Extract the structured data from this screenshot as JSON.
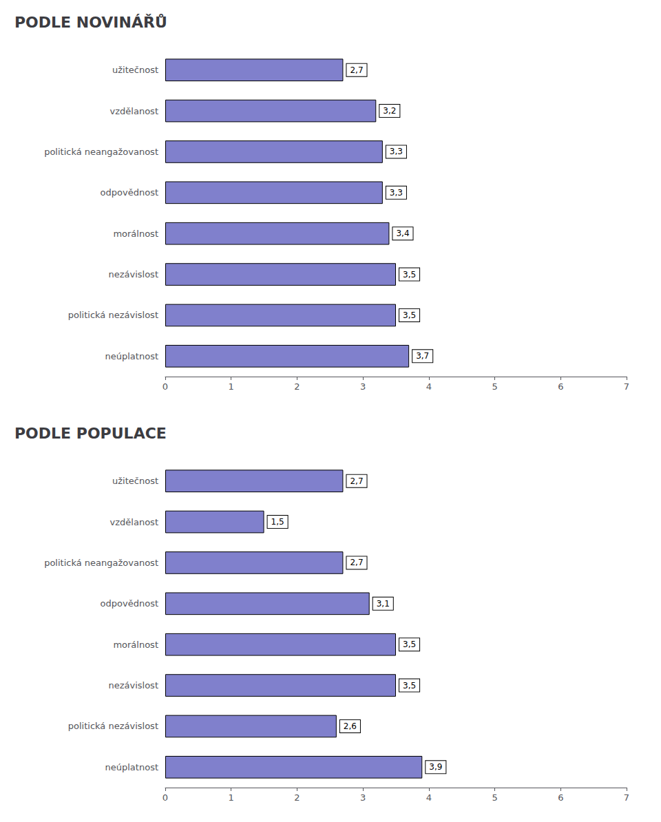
{
  "chart_data": [
    {
      "type": "bar",
      "orientation": "horizontal",
      "title": "PODLE NOVINÁŘŮ",
      "categories": [
        "užitečnost",
        "vzdělanost",
        "politická neangažovanost",
        "odpovědnost",
        "morálnost",
        "nezávislost",
        "politická nezávislost",
        "neúplatnost"
      ],
      "values": [
        2.7,
        3.2,
        3.3,
        3.3,
        3.4,
        3.5,
        3.5,
        3.7
      ],
      "value_labels": [
        "2,7",
        "3,2",
        "3,3",
        "3,3",
        "3,4",
        "3,5",
        "3,5",
        "3,7"
      ],
      "data_labels": true,
      "color": "#8080cc",
      "xlim": [
        0,
        7
      ],
      "xticks": [
        0,
        1,
        2,
        3,
        4,
        5,
        6,
        7
      ],
      "grid": false
    },
    {
      "type": "bar",
      "orientation": "horizontal",
      "title": "PODLE POPULACE",
      "categories": [
        "užitečnost",
        "vzdělanost",
        "politická neangažovanost",
        "odpovědnost",
        "morálnost",
        "nezávislost",
        "politická nezávislost",
        "neúplatnost"
      ],
      "values": [
        2.7,
        1.5,
        2.7,
        3.1,
        3.5,
        3.5,
        2.6,
        3.9
      ],
      "value_labels": [
        "2,7",
        "1,5",
        "2,7",
        "3,1",
        "3,5",
        "3,5",
        "2,6",
        "3,9"
      ],
      "data_labels": true,
      "color": "#8080cc",
      "xlim": [
        0,
        7
      ],
      "xticks": [
        0,
        1,
        2,
        3,
        4,
        5,
        6,
        7
      ],
      "grid": false
    }
  ]
}
